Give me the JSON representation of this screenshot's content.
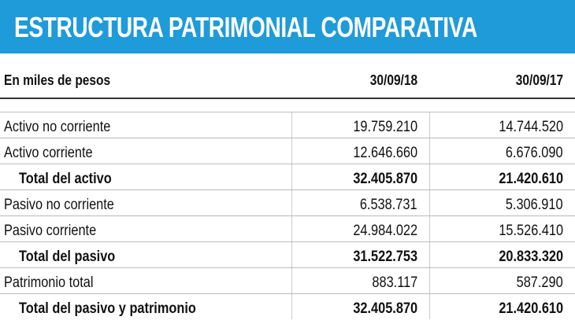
{
  "header": {
    "title": "ESTRUCTURA PATRIMONIAL COMPARATIVA"
  },
  "table": {
    "columns": [
      "En miles de pesos",
      "30/09/18",
      "30/09/17"
    ],
    "rows": [
      [
        "Activo no corriente",
        "19.759.210",
        "14.744.520"
      ],
      [
        "Activo corriente",
        "12.646.660",
        "6.676.090"
      ],
      [
        "Total del activo",
        "32.405.870",
        "21.420.610"
      ],
      [
        "Pasivo no corriente",
        "6.538.731",
        "5.306.910"
      ],
      [
        "Pasivo corriente",
        "24.984.022",
        "15.526.410"
      ],
      [
        "Total del pasivo",
        "31.522.753",
        "20.833.320"
      ],
      [
        "Patrimonio total",
        "883.117",
        "587.290"
      ],
      [
        "Total del pasivo y patrimonio",
        "32.405.870",
        "21.420.610"
      ]
    ]
  }
}
